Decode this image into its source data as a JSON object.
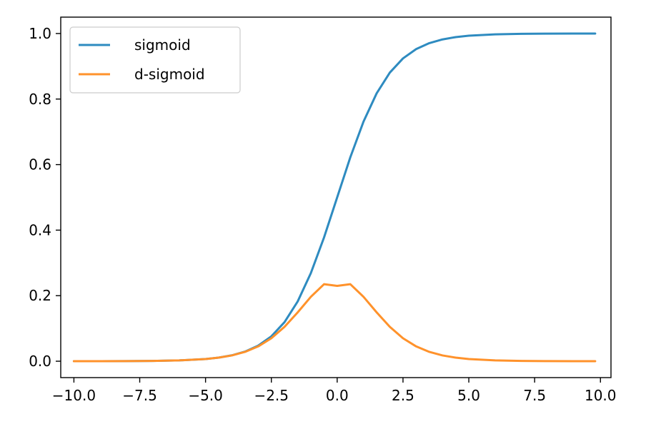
{
  "chart_data": {
    "type": "line",
    "title": "",
    "xlabel": "",
    "ylabel": "",
    "xlim": [
      -10.5,
      10.4
    ],
    "ylim": [
      -0.05,
      1.05
    ],
    "grid": false,
    "legend_position": "upper-left",
    "x_ticks": [
      {
        "value": -10.0,
        "label": "−10.0"
      },
      {
        "value": -7.5,
        "label": "−7.5"
      },
      {
        "value": -5.0,
        "label": "−5.0"
      },
      {
        "value": -2.5,
        "label": "−2.5"
      },
      {
        "value": 0.0,
        "label": "0.0"
      },
      {
        "value": 2.5,
        "label": "2.5"
      },
      {
        "value": 5.0,
        "label": "5.0"
      },
      {
        "value": 7.5,
        "label": "7.5"
      },
      {
        "value": 10.0,
        "label": "10.0"
      }
    ],
    "y_ticks": [
      {
        "value": 0.0,
        "label": "0.0"
      },
      {
        "value": 0.2,
        "label": "0.2"
      },
      {
        "value": 0.4,
        "label": "0.4"
      },
      {
        "value": 0.6,
        "label": "0.6"
      },
      {
        "value": 0.8,
        "label": "0.8"
      },
      {
        "value": 1.0,
        "label": "1.0"
      }
    ],
    "series": [
      {
        "name": "sigmoid",
        "color": "#2e8bc0",
        "x": [
          -10.0,
          -9.0,
          -8.0,
          -7.0,
          -6.0,
          -5.0,
          -4.5,
          -4.0,
          -3.5,
          -3.0,
          -2.5,
          -2.0,
          -1.5,
          -1.0,
          -0.5,
          0.0,
          0.5,
          1.0,
          1.5,
          2.0,
          2.5,
          3.0,
          3.5,
          4.0,
          4.5,
          5.0,
          6.0,
          7.0,
          8.0,
          9.0,
          9.8
        ],
        "y": [
          0.0,
          0.0001,
          0.0003,
          0.0009,
          0.0025,
          0.0067,
          0.011,
          0.018,
          0.0293,
          0.0474,
          0.0759,
          0.1192,
          0.1824,
          0.2689,
          0.3775,
          0.5,
          0.6225,
          0.7311,
          0.8176,
          0.8808,
          0.9241,
          0.9526,
          0.9707,
          0.982,
          0.989,
          0.9933,
          0.9975,
          0.9991,
          0.9997,
          0.9999,
          0.9999
        ]
      },
      {
        "name": "d-sigmoid",
        "color": "#ff922b",
        "x": [
          -10.0,
          -9.0,
          -8.0,
          -7.0,
          -6.0,
          -5.0,
          -4.5,
          -4.0,
          -3.5,
          -3.0,
          -2.5,
          -2.0,
          -1.5,
          -1.0,
          -0.5,
          0.0,
          0.5,
          1.0,
          1.5,
          2.0,
          2.5,
          3.0,
          3.5,
          4.0,
          4.5,
          5.0,
          6.0,
          7.0,
          8.0,
          9.0,
          9.8
        ],
        "y": [
          0.0,
          0.0001,
          0.0003,
          0.0009,
          0.0025,
          0.0066,
          0.0109,
          0.0177,
          0.0285,
          0.0452,
          0.0701,
          0.105,
          0.1491,
          0.1966,
          0.235,
          0.23,
          0.235,
          0.1966,
          0.1491,
          0.105,
          0.0701,
          0.0452,
          0.0285,
          0.0177,
          0.0109,
          0.0066,
          0.0025,
          0.0009,
          0.0003,
          0.0001,
          0.0001
        ]
      }
    ]
  }
}
